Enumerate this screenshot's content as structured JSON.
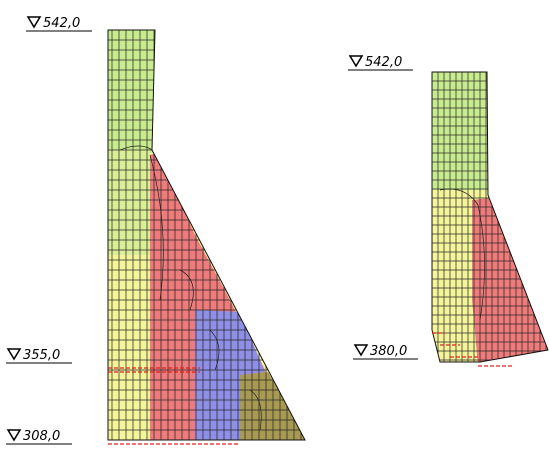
{
  "left_section": {
    "levels": [
      "542,0",
      "355,0",
      "308,0"
    ]
  },
  "right_section": {
    "levels": [
      "542,0",
      "380,0"
    ]
  }
}
